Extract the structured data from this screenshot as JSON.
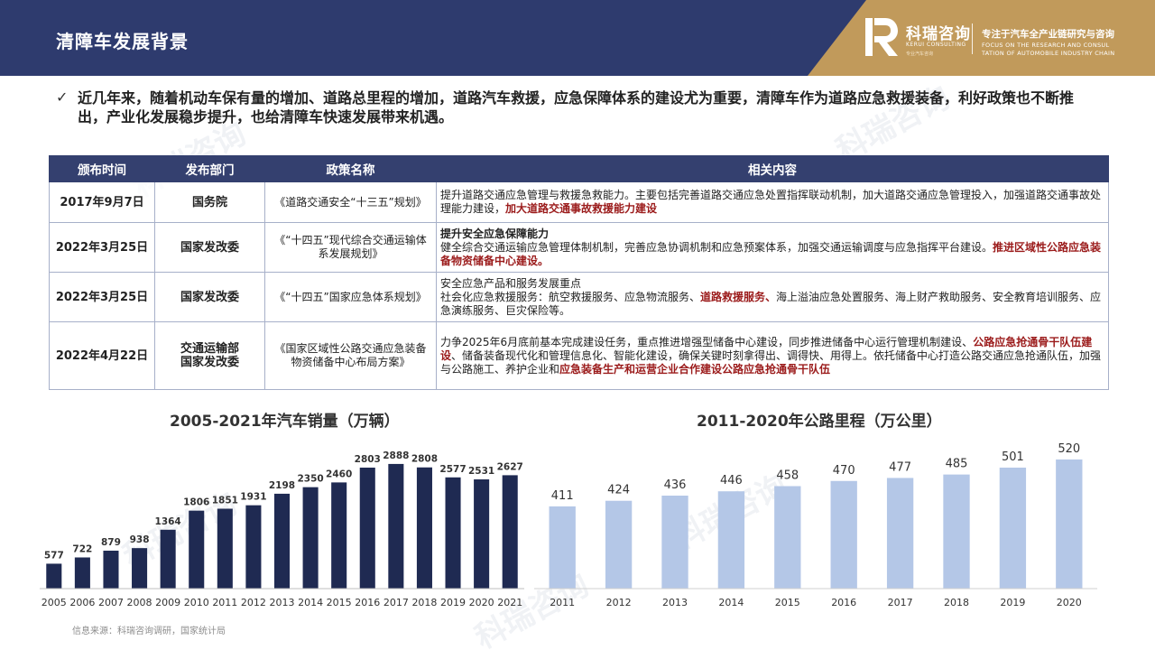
{
  "header": {
    "title": "清障车发展背景",
    "brand_cn": "科瑞咨询",
    "brand_en": "KERUI CONSULTING",
    "brand_sub": "专业汽车咨询",
    "tagline_cn": "专注于汽车全产业链研究与咨询",
    "tagline_en_1": "FOCUS ON THE RESEARCH AND CONSUL",
    "tagline_en_2": "TATION OF AUTOMOBILE INDUSTRY CHAIN",
    "colors": {
      "navy": "#2e3b6e",
      "gold": "#c19a5b"
    }
  },
  "intro": {
    "icon": "check-icon",
    "text": "近几年来，随着机动车保有量的增加、道路总里程的增加，道路汽车救援，应急保障体系的建设尤为重要，清障车作为道路应急救援装备，利好政策也不断推出，产业化发展稳步提升，也给清障车快速发展带来机遇。"
  },
  "table": {
    "headers": [
      "颁布时间",
      "发布部门",
      "政策名称",
      "相关内容"
    ],
    "rows": [
      {
        "date": "2017年9月7日",
        "dept": "国务院",
        "dept2": "",
        "name": "《道路交通安全“十三五”规划》",
        "content": [
          {
            "t": "提升道路交通应急管理与救援急救能力。主要包括完善道路交通应急处置指挥联动机制，加大道路交通应急管理投入，加强道路交通事故处理能力建设，",
            "s": "normal"
          },
          {
            "t": "加大道路交通事故救援能力建设",
            "s": "hl"
          }
        ]
      },
      {
        "date": "2022年3月25日",
        "dept": "国家发改委",
        "dept2": "",
        "name": "《“十四五”现代综合交通运输体系发展规划》",
        "content": [
          {
            "t": "提升安全应急保障能力",
            "s": "bold"
          },
          {
            "t": "br",
            "s": "br"
          },
          {
            "t": "健全综合交通运输应急管理体制机制，完善应急协调机制和应急预案体系，加强交通运输调度与应急指挥平台建设。",
            "s": "normal"
          },
          {
            "t": "推进区域性公路应急装备物资储备中心建设。",
            "s": "hl"
          }
        ]
      },
      {
        "date": "2022年3月25日",
        "dept": "国家发改委",
        "dept2": "",
        "name": "《“十四五”国家应急体系规划》",
        "content": [
          {
            "t": "安全应急产品和服务发展重点",
            "s": "normal"
          },
          {
            "t": "br",
            "s": "br"
          },
          {
            "t": "社会化应急救援服务：航空救援服务、应急物流服务、",
            "s": "normal"
          },
          {
            "t": "道路救援服务、",
            "s": "hl"
          },
          {
            "t": "海上溢油应急处置服务、海上财产救助服务、安全教育培训服务、应急演练服务、巨灾保险等。",
            "s": "normal"
          }
        ]
      },
      {
        "date": "2022年4月22日",
        "dept": "交通运输部",
        "dept2": "国家发改委",
        "name": "《国家区域性公路交通应急装备物资储备中心布局方案》",
        "content": [
          {
            "t": "力争2025年6月底前基本完成建设任务，重点推进增强型储备中心建设，同步推进储备中心运行管理机制建设、",
            "s": "normal"
          },
          {
            "t": "公路应急抢通骨干队伍建设",
            "s": "hl"
          },
          {
            "t": "、储备装备现代化和管理信息化、智能化建设，确保关键时刻拿得出、调得快、用得上。依托储备中心打造公路交通应急抢通队伍，加强与公路施工、养护企业和",
            "s": "normal"
          },
          {
            "t": "应急装备生产和运营企业合作建设公路应急抢通骨干队伍",
            "s": "hl"
          }
        ]
      }
    ]
  },
  "chart_data": [
    {
      "type": "bar",
      "title": "2005-2021年汽车销量（万辆）",
      "categories": [
        "2005",
        "2006",
        "2007",
        "2008",
        "2009",
        "2010",
        "2011",
        "2012",
        "2013",
        "2014",
        "2015",
        "2016",
        "2017",
        "2018",
        "2019",
        "2020",
        "2021"
      ],
      "values": [
        577,
        722,
        879,
        938,
        1364,
        1806,
        1851,
        1931,
        2198,
        2350,
        2460,
        2803,
        2888,
        2808,
        2577,
        2531,
        2627
      ],
      "ylim": [
        0,
        3200
      ],
      "color": "#1f2a52",
      "grid": false,
      "legend": "none"
    },
    {
      "type": "bar",
      "title": "2011-2020年公路里程（万公里）",
      "categories": [
        "2011",
        "2012",
        "2013",
        "2014",
        "2015",
        "2016",
        "2017",
        "2018",
        "2019",
        "2020"
      ],
      "values": [
        411,
        424,
        436,
        446,
        458,
        470,
        477,
        485,
        501,
        520
      ],
      "ylim": [
        220,
        545
      ],
      "color": "#b4c7e7",
      "grid": false,
      "legend": "none"
    }
  ],
  "source": "信息来源：科瑞咨询调研，国家统计局"
}
